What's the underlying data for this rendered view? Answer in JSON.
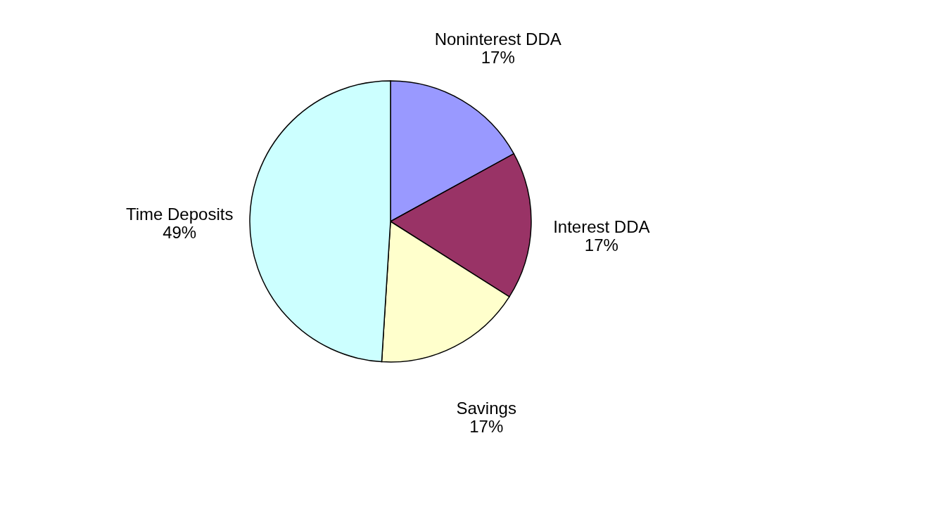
{
  "chart_data": {
    "type": "pie",
    "categories": [
      "Noninterest DDA",
      "Interest DDA",
      "Savings",
      "Time Deposits"
    ],
    "values": [
      17,
      17,
      17,
      49
    ],
    "value_labels": [
      "17%",
      "17%",
      "17%",
      "49%"
    ],
    "colors": [
      "#9999ff",
      "#993366",
      "#ffffcc",
      "#ccffff"
    ],
    "legend": false
  }
}
